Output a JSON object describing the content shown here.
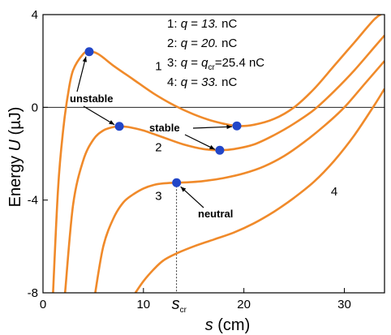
{
  "chart_data": {
    "type": "line",
    "xlabel_italic": "s",
    "xlabel_unit": " (cm)",
    "ylabel_main": "Energy ",
    "ylabel_italic": "U",
    "ylabel_unit": " (µJ)",
    "xlim": [
      0,
      34
    ],
    "ylim": [
      -8,
      4
    ],
    "xticks": [
      0,
      10,
      20,
      30
    ],
    "yticks": [
      4,
      0,
      -4,
      -8
    ],
    "xtick_labels": [
      "0",
      "10",
      "20",
      "30"
    ],
    "ytick_labels": [
      "4",
      "0",
      "-4",
      "-8"
    ],
    "scr_label_main": "s",
    "scr_label_sub": "cr",
    "scr_value": 13.3,
    "line_color": "#f08a2a",
    "point_color": "#2246c8",
    "legend": [
      {
        "num": "1:",
        "var": "q",
        "eq": " = ",
        "val": "13.",
        "unit": " nC"
      },
      {
        "num": "2:",
        "var": "q",
        "eq": " = ",
        "val": "20.",
        "unit": " nC"
      },
      {
        "num": "3:",
        "var": "q",
        "eq": " = ",
        "val_italic": "q",
        "val_sub": "cr",
        "val_rest": "=25.4",
        "unit": " nC"
      },
      {
        "num": "4:",
        "var": "q",
        "eq": " = ",
        "val": "33.",
        "unit": " nC"
      }
    ],
    "annotations": {
      "unstable": "unstable",
      "stable": "stable",
      "neutral": "neutral"
    },
    "series": [
      {
        "label": "1",
        "x": [
          1.0,
          1.5,
          2.0,
          2.5,
          3.0,
          4.0,
          4.6,
          5.5,
          7.0,
          9.0,
          11.0,
          13.0,
          15.0,
          17.0,
          19.3,
          21.0,
          23.0,
          25.0,
          27.0,
          29.0,
          31.0,
          33.0,
          34.0
        ],
        "y": [
          -8.0,
          -3.5,
          -1.0,
          0.6,
          1.6,
          2.3,
          2.4,
          2.3,
          1.8,
          1.2,
          0.6,
          0.1,
          -0.3,
          -0.6,
          -0.8,
          -0.75,
          -0.5,
          0.0,
          0.8,
          1.8,
          2.8,
          3.8,
          4.1
        ]
      },
      {
        "label": "2",
        "x": [
          2.2,
          3.0,
          4.0,
          5.0,
          6.0,
          7.0,
          7.6,
          8.5,
          10.0,
          12.0,
          14.0,
          16.0,
          17.6,
          19.0,
          21.0,
          23.0,
          25.0,
          27.0,
          29.0,
          31.0,
          33.0,
          34.0
        ],
        "y": [
          -8.0,
          -4.2,
          -2.3,
          -1.4,
          -1.0,
          -0.85,
          -0.82,
          -0.85,
          -1.0,
          -1.3,
          -1.6,
          -1.8,
          -1.85,
          -1.8,
          -1.6,
          -1.2,
          -0.7,
          -0.1,
          0.7,
          1.6,
          2.6,
          3.1
        ]
      },
      {
        "label": "3",
        "x": [
          5.2,
          6.0,
          7.0,
          8.0,
          9.0,
          10.0,
          11.0,
          12.0,
          13.3,
          14.5,
          16.0,
          18.0,
          20.0,
          22.0,
          24.0,
          26.0,
          28.0,
          30.0,
          32.0,
          34.0
        ],
        "y": [
          -8.0,
          -6.0,
          -4.8,
          -4.1,
          -3.75,
          -3.5,
          -3.35,
          -3.28,
          -3.25,
          -3.23,
          -3.18,
          -3.05,
          -2.85,
          -2.55,
          -2.1,
          -1.5,
          -0.8,
          0.0,
          1.0,
          2.0
        ]
      },
      {
        "label": "4",
        "x": [
          9.2,
          10.0,
          11.0,
          12.0,
          13.3,
          15.0,
          17.0,
          19.0,
          21.0,
          23.0,
          25.0,
          27.0,
          29.0,
          31.0,
          33.0,
          34.0
        ],
        "y": [
          -8.0,
          -7.5,
          -7.0,
          -6.6,
          -6.3,
          -6.0,
          -5.7,
          -5.4,
          -5.0,
          -4.5,
          -3.9,
          -3.2,
          -2.3,
          -1.2,
          0.1,
          0.8
        ]
      }
    ],
    "series_label_positions": [
      {
        "label": "1",
        "x": 11.5,
        "y": 1.6
      },
      {
        "label": "2",
        "x": 11.5,
        "y": -1.9
      },
      {
        "label": "3",
        "x": 11.5,
        "y": -4.0
      },
      {
        "label": "4",
        "x": 29.0,
        "y": -3.8
      }
    ],
    "points": [
      {
        "series": "1",
        "x": 4.6,
        "y": 2.4
      },
      {
        "series": "1",
        "x": 19.3,
        "y": -0.8
      },
      {
        "series": "2",
        "x": 7.6,
        "y": -0.82
      },
      {
        "series": "2",
        "x": 17.6,
        "y": -1.85
      },
      {
        "series": "3",
        "x": 13.3,
        "y": -3.25
      }
    ]
  }
}
